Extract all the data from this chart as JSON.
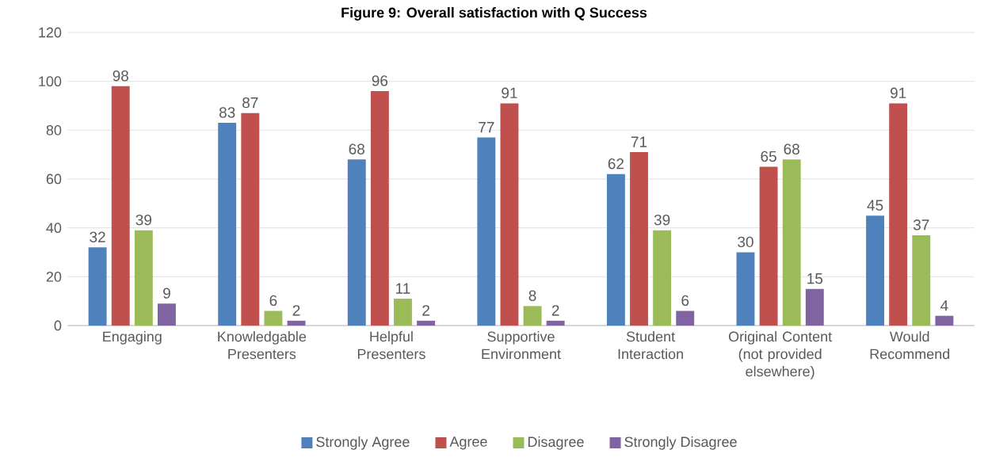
{
  "chart_data": {
    "type": "bar",
    "title": "Figure 9: Overall satisfaction with Q Success",
    "categories": [
      "Engaging",
      "Knowledgable Presenters",
      "Helpful Presenters",
      "Supportive Environment",
      "Student Interaction",
      "Original Content (not provided elsewhere)",
      "Would Recommend"
    ],
    "series": [
      {
        "name": "Strongly Agree",
        "color": "#4f81bd",
        "values": [
          32,
          83,
          68,
          77,
          62,
          30,
          45
        ]
      },
      {
        "name": "Agree",
        "color": "#c0504d",
        "values": [
          98,
          87,
          96,
          91,
          71,
          65,
          91
        ]
      },
      {
        "name": "Disagree",
        "color": "#9bbb59",
        "values": [
          39,
          6,
          11,
          8,
          39,
          68,
          37
        ]
      },
      {
        "name": "Strongly Disagree",
        "color": "#8064a2",
        "values": [
          9,
          2,
          2,
          2,
          6,
          15,
          4
        ]
      }
    ],
    "ylim": [
      0,
      120
    ],
    "yticks": [
      0,
      20,
      40,
      60,
      80,
      100,
      120
    ],
    "grid": "y",
    "legend": "bottom",
    "data_labels": true
  }
}
